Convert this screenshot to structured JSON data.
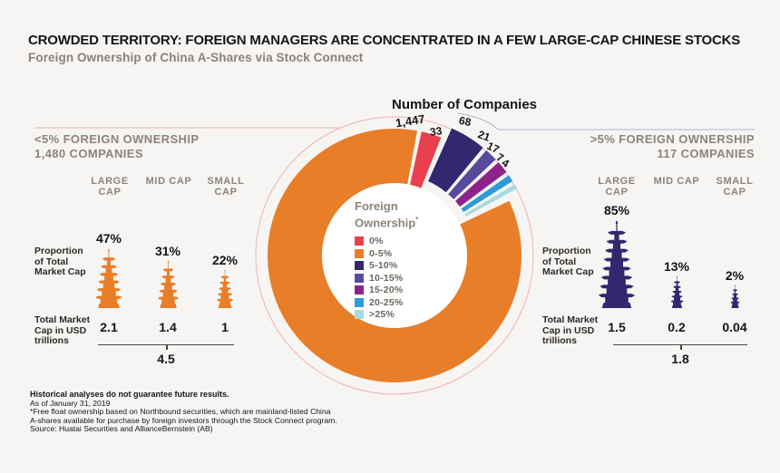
{
  "header": {
    "title": "CROWDED TERRITORY: FOREIGN MANAGERS ARE CONCENTRATED IN A FEW LARGE-CAP CHINESE STOCKS",
    "subtitle": "Foreign Ownership of China A-Shares via Stock Connect"
  },
  "chart_data": [
    {
      "type": "pie",
      "title": "Number of Companies",
      "legend_title": "Foreign Ownership",
      "legend_footnote_mark": "*",
      "legend_position": "center",
      "units": "companies",
      "segments": [
        {
          "label": "0%",
          "value": 33,
          "display": "33",
          "color": "#E8404C"
        },
        {
          "label": "0-5%",
          "value": 1447,
          "display": "1,447",
          "color": "#E87E27"
        },
        {
          "label": "5-10%",
          "value": 68,
          "display": "68",
          "color": "#32286F"
        },
        {
          "label": "10-15%",
          "value": 21,
          "display": "21",
          "color": "#5A4A9E"
        },
        {
          "label": "15-20%",
          "value": 17,
          "display": "17",
          "color": "#8E2288"
        },
        {
          "label": "20-25%",
          "value": 7,
          "display": "7",
          "color": "#2E9BD6"
        },
        {
          "label": ">25%",
          "value": 4,
          "display": "4",
          "color": "#A5DBE0"
        }
      ]
    },
    {
      "type": "bar",
      "title": "<5% FOREIGN OWNERSHIP",
      "subtitle": "1,480 COMPANIES",
      "categories": [
        "LARGE CAP",
        "MID CAP",
        "SMALL CAP"
      ],
      "series": [
        {
          "name": "Proportion of Total Market Cap (%)",
          "values": [
            47,
            31,
            22
          ]
        },
        {
          "name": "Total Market Cap in USD trillions",
          "values": [
            2.1,
            1.4,
            1
          ]
        }
      ],
      "total_market_cap_trillions": 4.5
    },
    {
      "type": "bar",
      "title": ">5% FOREIGN OWNERSHIP",
      "subtitle": "117 COMPANIES",
      "categories": [
        "LARGE CAP",
        "MID CAP",
        "SMALL CAP"
      ],
      "series": [
        {
          "name": "Proportion of Total Market Cap (%)",
          "values": [
            85,
            13,
            2
          ]
        },
        {
          "name": "Total Market Cap in USD trillions",
          "values": [
            1.5,
            0.2,
            0.04
          ]
        }
      ],
      "total_market_cap_trillions": 1.8
    }
  ],
  "left_panel": {
    "title_line1": "<5% FOREIGN OWNERSHIP",
    "title_line2": "1,480 COMPANIES",
    "proportion_label": "Proportion of Total Market Cap",
    "total_label": "Total Market Cap in USD trillions",
    "columns": [
      {
        "cap": "LARGE CAP",
        "percent": "47%",
        "trillions": "2.1"
      },
      {
        "cap": "MID CAP",
        "percent": "31%",
        "trillions": "1.4"
      },
      {
        "cap": "SMALL CAP",
        "percent": "22%",
        "trillions": "1"
      }
    ],
    "total": "4.5"
  },
  "right_panel": {
    "title_line1": ">5% FOREIGN OWNERSHIP",
    "title_line2": "117 COMPANIES",
    "proportion_label": "Proportion of Total Market Cap",
    "total_label": "Total Market Cap in USD trillions",
    "columns": [
      {
        "cap": "LARGE CAP",
        "percent": "85%",
        "trillions": "1.5"
      },
      {
        "cap": "MID CAP",
        "percent": "13%",
        "trillions": "0.2"
      },
      {
        "cap": "SMALL CAP",
        "percent": "2%",
        "trillions": "0.04"
      }
    ],
    "total": "1.8"
  },
  "footnotes": [
    "Historical analyses do not guarantee future results.",
    "As of January 31, 2019",
    "*Free float ownership based on Northbound securities, which are mainland-listed China",
    "A-shares available for purchase by foreign investors through the Stock Connect program.",
    "Source: Huatai Securities and AllianceBernstein (AB)"
  ],
  "colors": {
    "background": "#F6F5F3",
    "title_text": "#171513",
    "muted_text": "#8D8379",
    "legend_text": "#6D665E",
    "decor_left_line": "#EFB0B6",
    "decor_right_line": "#B3B2D4",
    "orange": "#E87E27",
    "navy": "#32286F",
    "white_center": "#FFFFFF"
  }
}
